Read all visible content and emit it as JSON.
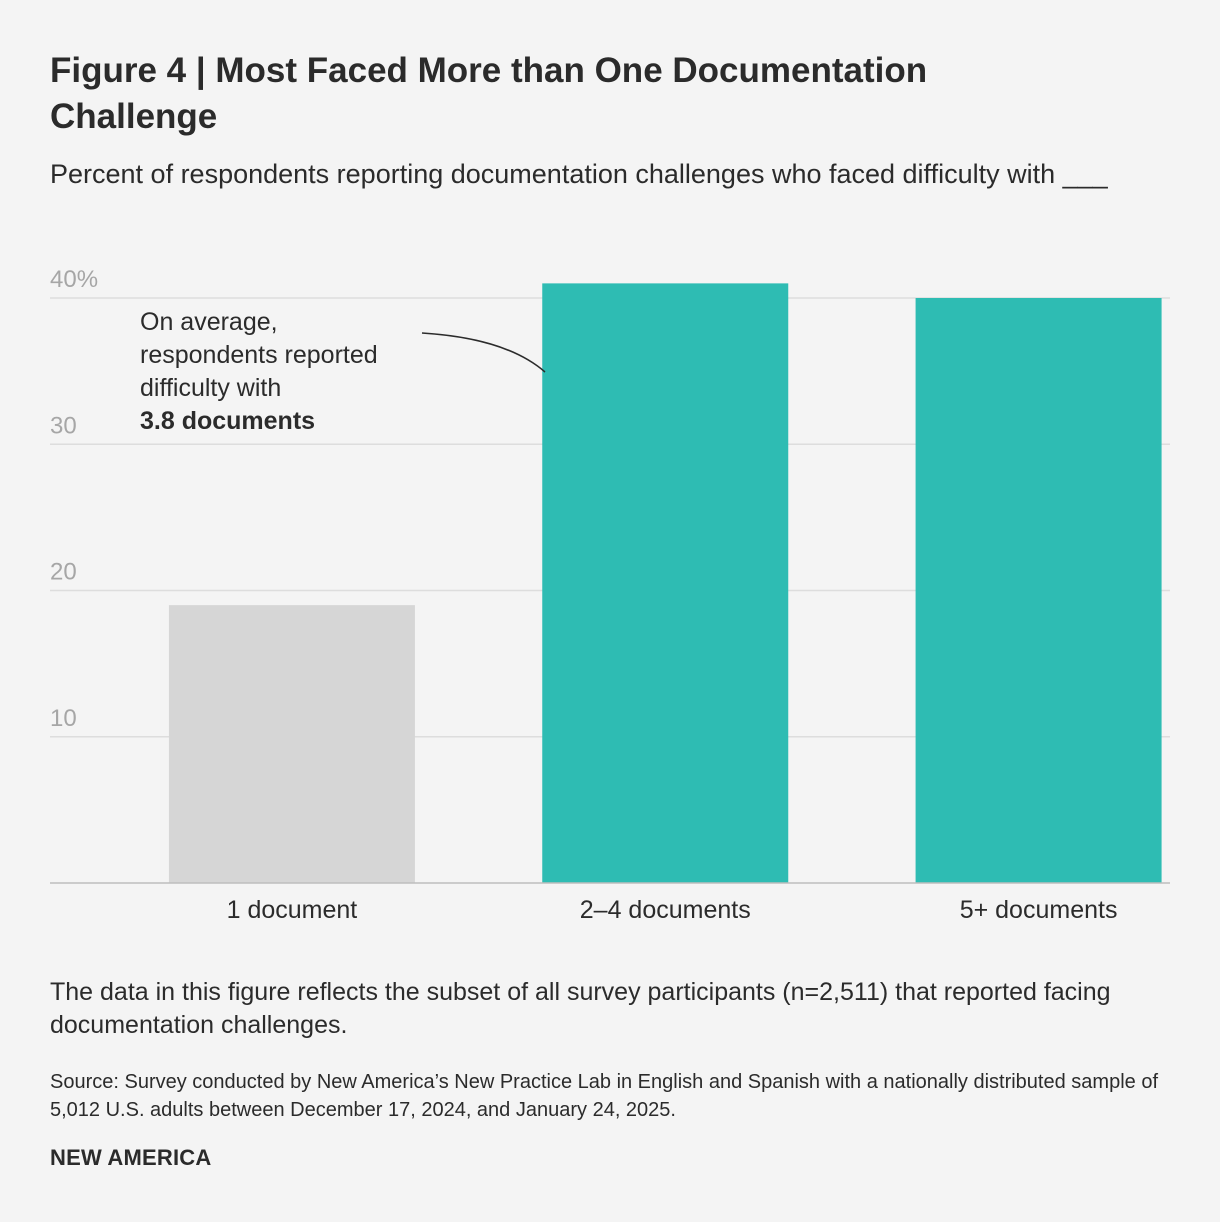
{
  "header": {
    "title": "Figure 4 | Most Faced More than One Documentation Challenge",
    "subtitle": "Percent of respondents reporting documentation challenges who faced difficulty with ___"
  },
  "chart_data": {
    "type": "bar",
    "categories": [
      "1 document",
      "2–4 documents",
      "5+ documents"
    ],
    "values": [
      19,
      41,
      40
    ],
    "unit": "%",
    "ylim": [
      0,
      40
    ],
    "yticks": [
      {
        "value": 10,
        "label": "10"
      },
      {
        "value": 20,
        "label": "20"
      },
      {
        "value": 30,
        "label": "30"
      },
      {
        "value": 40,
        "label": "40%"
      }
    ],
    "grid": true,
    "bar_colors": [
      "#d6d6d6",
      "#2ebcb3",
      "#2ebcb3"
    ],
    "annotation": {
      "lines": [
        "On average,",
        "respondents reported",
        "difficulty with"
      ],
      "emphasis": "3.8 documents"
    }
  },
  "footer": {
    "note": "The data in this figure reflects the subset of all survey participants (n=2,511) that reported facing documentation challenges.",
    "source": "Source: Survey conducted by New America’s New Practice Lab in English and Spanish with a nationally distributed sample of 5,012 U.S. adults between December 17, 2024, and January 24, 2025.",
    "brand": "NEW AMERICA"
  },
  "colors": {
    "background": "#f4f4f4",
    "text": "#2b2b2b",
    "gridline": "#dddddd",
    "axis": "#bdbdbd",
    "tick_label": "#a6a6a6",
    "accent": "#2ebcb3",
    "muted_bar": "#d6d6d6"
  }
}
